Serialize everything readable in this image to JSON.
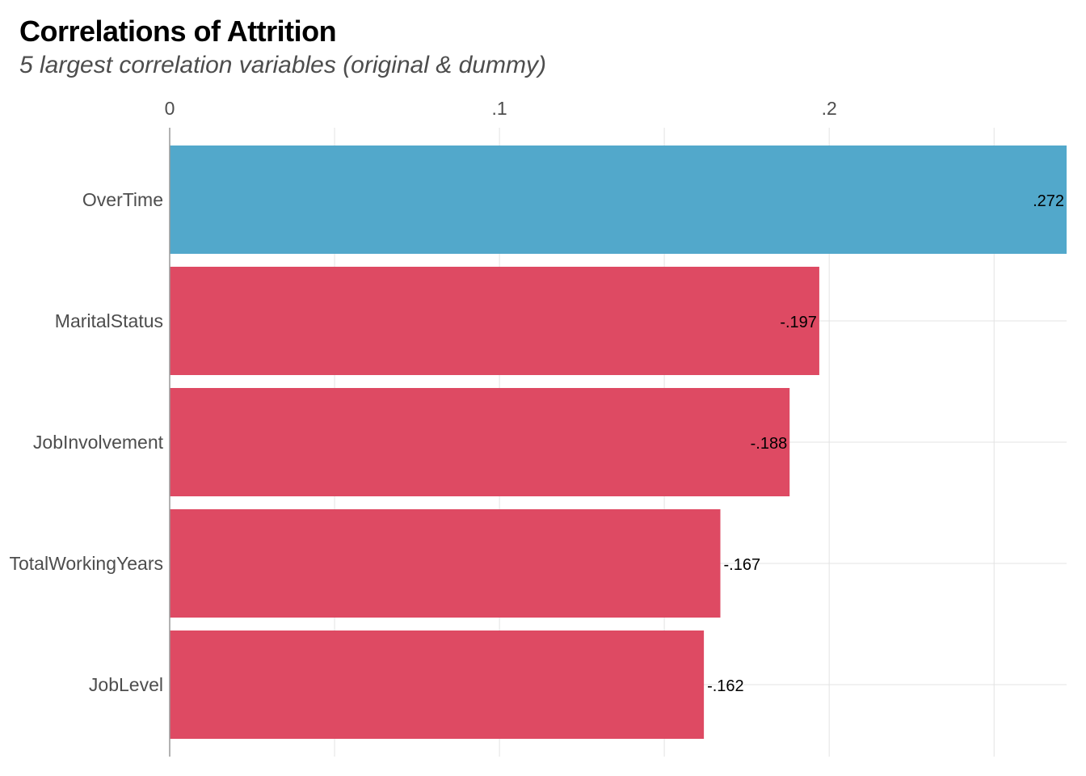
{
  "chart_data": {
    "type": "bar",
    "orientation": "horizontal",
    "title": "Correlations of Attrition",
    "subtitle": "5 largest correlation variables (original & dummy)",
    "xlabel": "",
    "ylabel": "",
    "x_axis_position": "top",
    "x_ticks": [
      {
        "value": 0,
        "label": "0"
      },
      {
        "value": 0.1,
        "label": ".1"
      },
      {
        "value": 0.2,
        "label": ".2"
      }
    ],
    "xlim": [
      0,
      0.272
    ],
    "grid": true,
    "legend": "none",
    "categories": [
      "OverTime",
      "MaritalStatus",
      "JobInvolvement",
      "TotalWorkingYears",
      "JobLevel"
    ],
    "values": [
      0.272,
      0.197,
      0.188,
      0.167,
      0.162
    ],
    "value_labels": [
      ".272",
      "-.197",
      "-.188",
      "-.167",
      "-.162"
    ],
    "bar_colors": [
      "#52a8cb",
      "#de4a63",
      "#de4a63",
      "#de4a63",
      "#de4a63"
    ],
    "colors": {
      "positive": "#52a8cb",
      "negative": "#de4a63"
    }
  }
}
